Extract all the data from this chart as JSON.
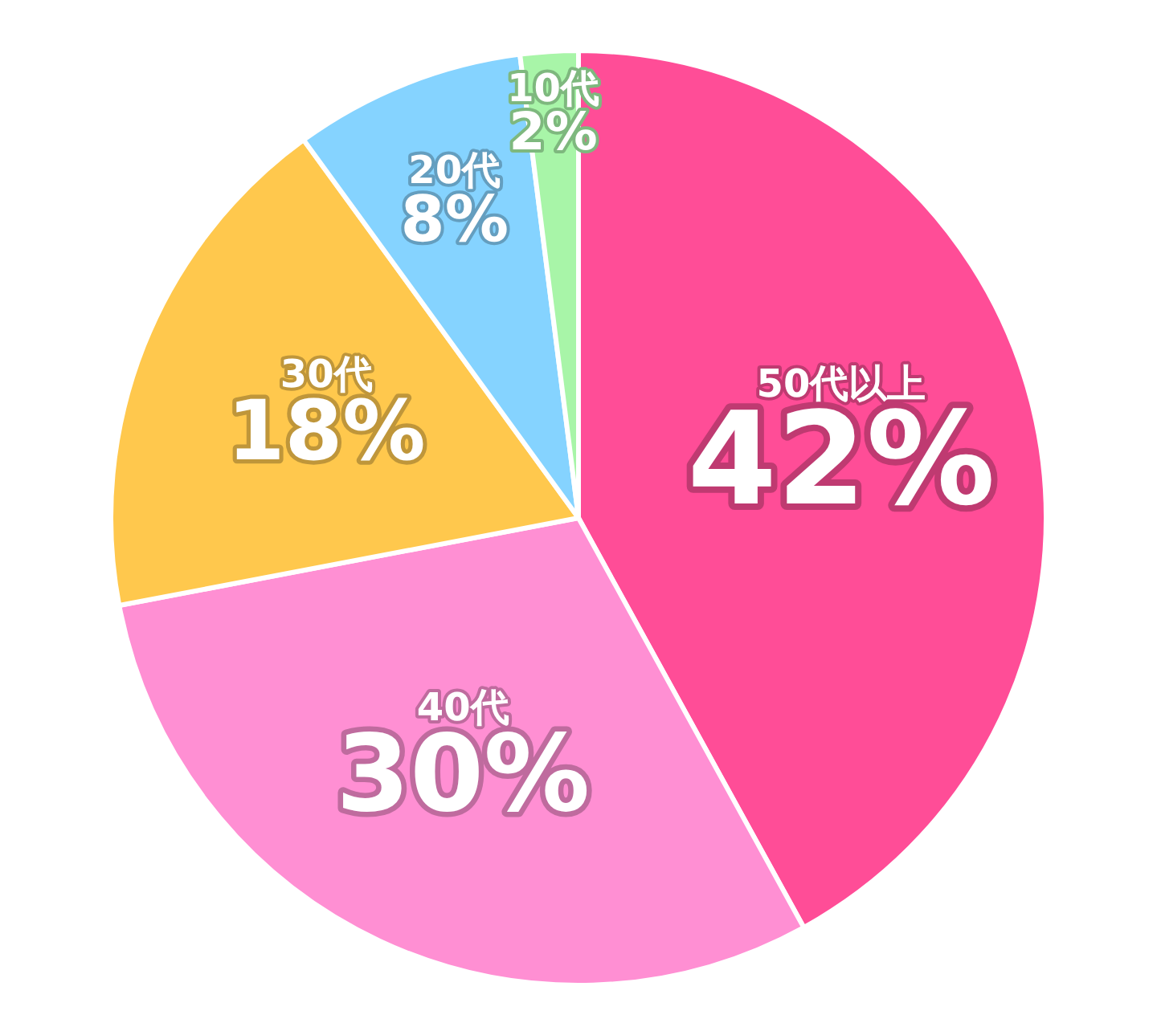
{
  "chart_data": {
    "type": "pie",
    "categories": [
      "50代以上",
      "40代",
      "30代",
      "20代",
      "10代"
    ],
    "values": [
      42,
      30,
      18,
      8,
      2
    ],
    "colors": [
      "#ff4d97",
      "#ff8fd3",
      "#ffc84d",
      "#85d3ff",
      "#a8f5a8"
    ],
    "value_labels": [
      "42%",
      "30%",
      "18%",
      "8%",
      "2%"
    ],
    "legend": false
  }
}
